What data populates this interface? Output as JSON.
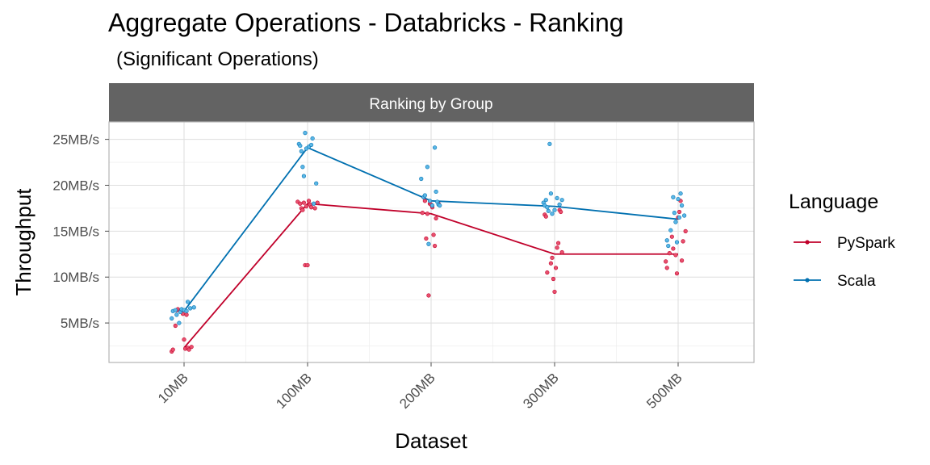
{
  "header": {
    "title": "Aggregate Operations - Databricks - Ranking",
    "subtitle": "(Significant Operations)"
  },
  "colors": {
    "PySpark": "#c0002a",
    "Scala": "#0070b0"
  },
  "chart_data": {
    "type": "line",
    "facet": "Ranking by Group",
    "xlabel": "Dataset",
    "ylabel": "Throughput",
    "categories": [
      "10MB",
      "100MB",
      "200MB",
      "300MB",
      "500MB"
    ],
    "ylim": [
      0.7,
      26.9
    ],
    "yticks": [
      5,
      10,
      15,
      20,
      25
    ],
    "ytick_labels": [
      "5MB/s",
      "10MB/s",
      "15MB/s",
      "20MB/s",
      "25MB/s"
    ],
    "grid": true,
    "legend": {
      "title": "Language",
      "position": "right"
    },
    "series": [
      {
        "name": "PySpark",
        "values": [
          2.3,
          18.0,
          16.9,
          12.5,
          12.5
        ],
        "points": [
          [
            [
              -0.1,
              1.9
            ],
            [
              -0.09,
              2.1
            ],
            [
              -0.07,
              4.7
            ],
            [
              -0.06,
              6.4
            ],
            [
              -0.05,
              6.5
            ],
            [
              -0.03,
              6.3
            ],
            [
              -0.01,
              6.0
            ],
            [
              0.0,
              3.2
            ],
            [
              0.01,
              2.2
            ],
            [
              0.02,
              5.9
            ],
            [
              0.03,
              2.3
            ],
            [
              0.04,
              2.1
            ],
            [
              0.06,
              2.4
            ]
          ],
          [
            [
              -0.08,
              18.2
            ],
            [
              -0.06,
              18.0
            ],
            [
              -0.05,
              17.5
            ],
            [
              -0.04,
              17.3
            ],
            [
              -0.03,
              18.1
            ],
            [
              -0.02,
              11.3
            ],
            [
              -0.01,
              17.7
            ],
            [
              0.0,
              11.3
            ],
            [
              0.01,
              18.3
            ],
            [
              0.02,
              17.9
            ],
            [
              0.03,
              17.6
            ],
            [
              0.06,
              17.5
            ],
            [
              0.08,
              18.1
            ]
          ],
          [
            [
              -0.07,
              17.0
            ],
            [
              -0.06,
              18.7
            ],
            [
              -0.05,
              18.3
            ],
            [
              -0.04,
              14.2
            ],
            [
              -0.03,
              16.9
            ],
            [
              -0.02,
              8.0
            ],
            [
              -0.01,
              18.0
            ],
            [
              0.0,
              17.9
            ],
            [
              0.01,
              17.6
            ],
            [
              0.02,
              14.6
            ],
            [
              0.03,
              13.4
            ],
            [
              0.04,
              16.4
            ],
            [
              0.06,
              18.0
            ]
          ],
          [
            [
              -0.08,
              16.8
            ],
            [
              -0.07,
              16.6
            ],
            [
              -0.06,
              10.5
            ],
            [
              -0.03,
              11.5
            ],
            [
              -0.02,
              12.1
            ],
            [
              -0.01,
              9.8
            ],
            [
              0.0,
              8.4
            ],
            [
              0.01,
              11.0
            ],
            [
              0.02,
              13.2
            ],
            [
              0.03,
              13.7
            ],
            [
              0.04,
              17.3
            ],
            [
              0.05,
              17.1
            ],
            [
              0.06,
              12.7
            ]
          ],
          [
            [
              -0.1,
              11.7
            ],
            [
              -0.09,
              11.0
            ],
            [
              -0.07,
              12.6
            ],
            [
              -0.05,
              14.4
            ],
            [
              -0.04,
              13.1
            ],
            [
              -0.02,
              12.4
            ],
            [
              -0.01,
              10.4
            ],
            [
              0.0,
              16.5
            ],
            [
              0.01,
              17.1
            ],
            [
              0.02,
              18.3
            ],
            [
              0.03,
              11.8
            ],
            [
              0.04,
              13.9
            ],
            [
              0.06,
              15.0
            ]
          ]
        ]
      },
      {
        "name": "Scala",
        "values": [
          6.3,
          24.1,
          18.3,
          17.7,
          16.3
        ],
        "points": [
          [
            [
              -0.1,
              5.5
            ],
            [
              -0.09,
              6.3
            ],
            [
              -0.07,
              6.4
            ],
            [
              -0.06,
              5.9
            ],
            [
              -0.04,
              5.0
            ],
            [
              -0.03,
              6.2
            ],
            [
              -0.02,
              6.5
            ],
            [
              0.0,
              6.4
            ],
            [
              0.02,
              6.3
            ],
            [
              0.03,
              7.3
            ],
            [
              0.05,
              6.6
            ],
            [
              0.08,
              6.7
            ]
          ],
          [
            [
              -0.07,
              24.5
            ],
            [
              -0.06,
              24.3
            ],
            [
              -0.05,
              23.7
            ],
            [
              -0.04,
              22.0
            ],
            [
              -0.03,
              21.0
            ],
            [
              -0.02,
              25.7
            ],
            [
              -0.01,
              24.0
            ],
            [
              0.01,
              24.2
            ],
            [
              0.03,
              24.4
            ],
            [
              0.04,
              25.1
            ],
            [
              0.05,
              18.0
            ],
            [
              0.07,
              20.2
            ]
          ],
          [
            [
              -0.08,
              20.7
            ],
            [
              -0.06,
              18.7
            ],
            [
              -0.05,
              18.9
            ],
            [
              -0.03,
              22.0
            ],
            [
              -0.02,
              13.6
            ],
            [
              -0.01,
              18.3
            ],
            [
              0.01,
              17.8
            ],
            [
              0.03,
              24.1
            ],
            [
              0.04,
              19.3
            ],
            [
              0.05,
              18.2
            ],
            [
              0.06,
              17.9
            ],
            [
              0.07,
              17.8
            ]
          ],
          [
            [
              -0.09,
              18.1
            ],
            [
              -0.08,
              17.8
            ],
            [
              -0.07,
              18.4
            ],
            [
              -0.06,
              17.6
            ],
            [
              -0.05,
              17.2
            ],
            [
              -0.04,
              24.5
            ],
            [
              -0.03,
              19.1
            ],
            [
              -0.02,
              16.9
            ],
            [
              0.0,
              17.3
            ],
            [
              0.02,
              18.6
            ],
            [
              0.04,
              17.9
            ],
            [
              0.06,
              18.4
            ]
          ],
          [
            [
              -0.09,
              14.0
            ],
            [
              -0.08,
              13.4
            ],
            [
              -0.06,
              15.1
            ],
            [
              -0.04,
              18.7
            ],
            [
              -0.03,
              17.0
            ],
            [
              -0.02,
              16.0
            ],
            [
              -0.01,
              13.8
            ],
            [
              0.0,
              18.5
            ],
            [
              0.01,
              16.5
            ],
            [
              0.02,
              19.1
            ],
            [
              0.03,
              17.8
            ],
            [
              0.05,
              16.7
            ]
          ]
        ]
      }
    ]
  }
}
